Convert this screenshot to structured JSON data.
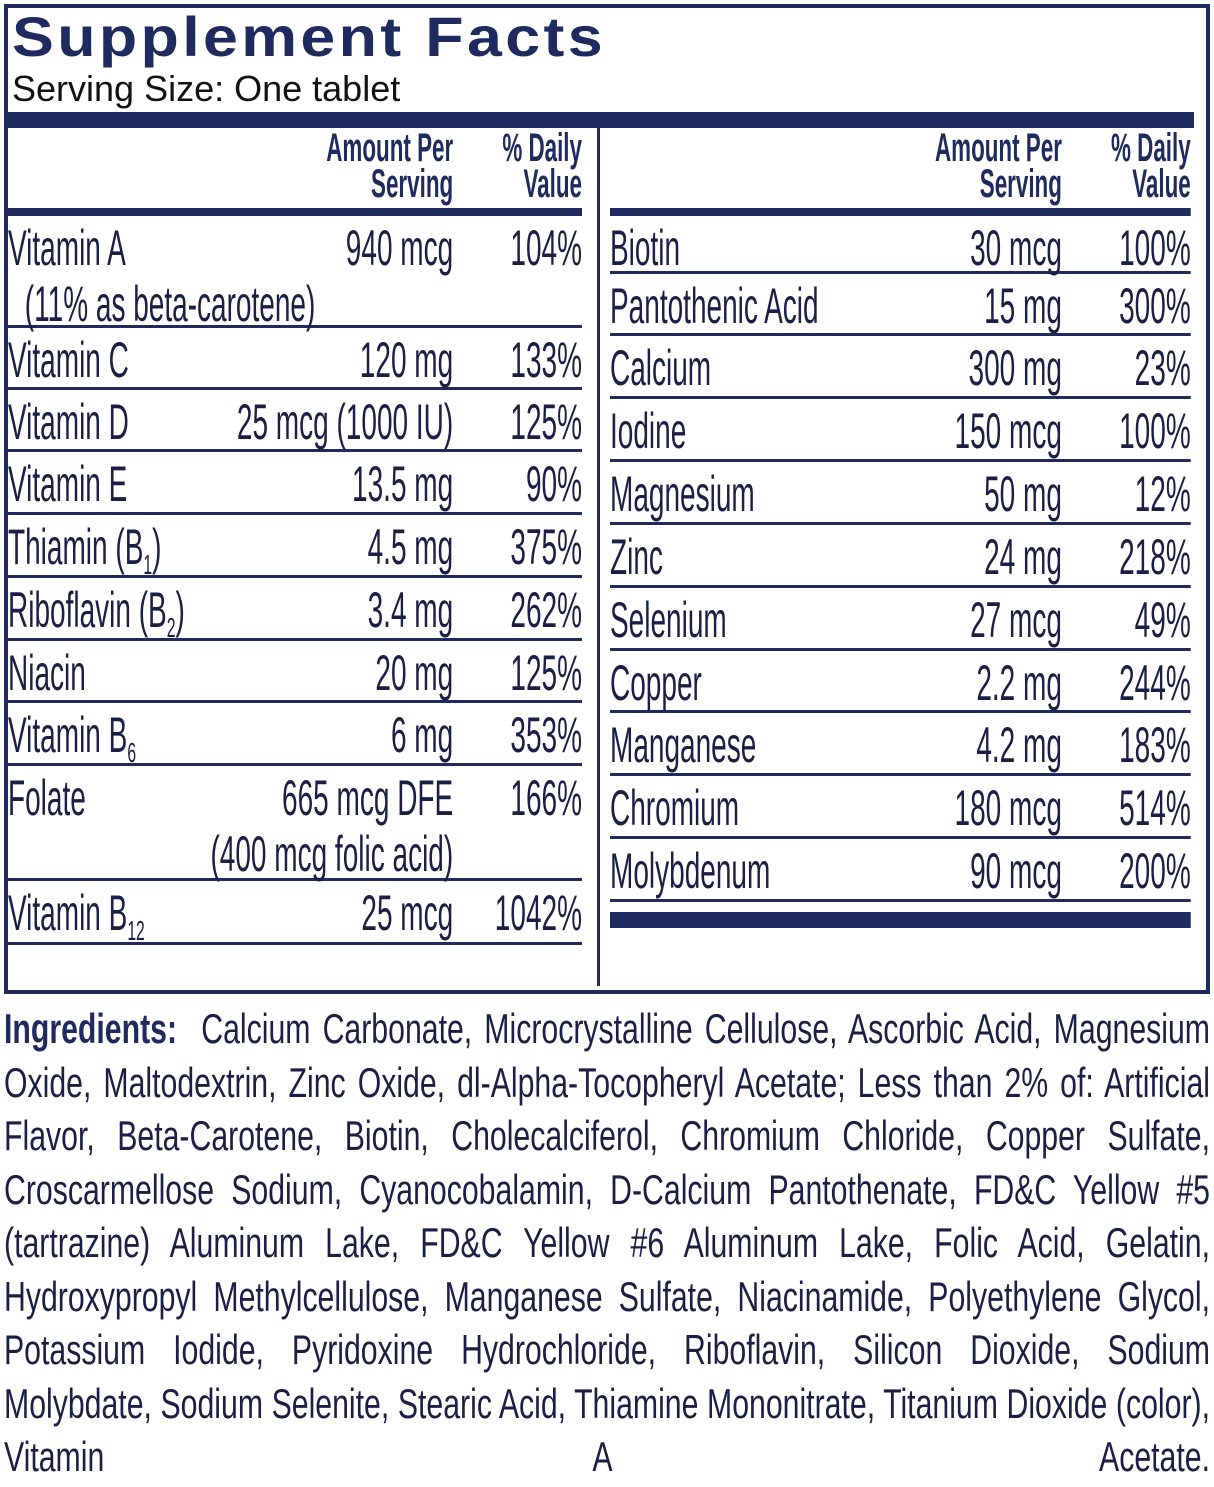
{
  "title": "Supplement Facts",
  "serving_size": "Serving Size:  One tablet",
  "header": {
    "amount": "Amount Per",
    "amount2": "Serving",
    "dv": "% Daily",
    "dv2": "Value"
  },
  "colors": {
    "navy": "#1f2a5e"
  },
  "left": [
    {
      "name": "Vitamin A",
      "sub": "",
      "amount": "940 mcg",
      "dv": "104%",
      "note": "(11% as beta-carotene)"
    },
    {
      "name": "Vitamin C",
      "sub": "",
      "amount": "120 mg",
      "dv": "133%"
    },
    {
      "name": "Vitamin D",
      "sub": "",
      "amount": "25 mcg (1000 IU)",
      "dv": "125%"
    },
    {
      "name": "Vitamin E",
      "sub": "",
      "amount": "13.5 mg",
      "dv": "90%"
    },
    {
      "name": "Thiamin (B",
      "sub": "1",
      "after": ")",
      "amount": "4.5 mg",
      "dv": "375%"
    },
    {
      "name": "Riboflavin (B",
      "sub": "2",
      "after": ")",
      "amount": "3.4 mg",
      "dv": "262%"
    },
    {
      "name": "Niacin",
      "sub": "",
      "amount": "20 mg",
      "dv": "125%"
    },
    {
      "name": "Vitamin B",
      "sub": "6",
      "amount": "6 mg",
      "dv": "353%"
    },
    {
      "name": "Folate",
      "sub": "",
      "amount": "665 mcg DFE",
      "dv": "166%",
      "note2": "(400 mcg folic acid)"
    },
    {
      "name": "Vitamin B",
      "sub": "12",
      "amount": "25 mcg",
      "dv": "1042%"
    }
  ],
  "right": [
    {
      "name": "Biotin",
      "amount": "30 mcg",
      "dv": "100%"
    },
    {
      "name": "Pantothenic Acid",
      "amount": "15 mg",
      "dv": "300%"
    },
    {
      "name": "Calcium",
      "amount": "300 mg",
      "dv": "23%"
    },
    {
      "name": "Iodine",
      "amount": "150 mcg",
      "dv": "100%"
    },
    {
      "name": "Magnesium",
      "amount": "50 mg",
      "dv": "12%"
    },
    {
      "name": "Zinc",
      "amount": "24 mg",
      "dv": "218%"
    },
    {
      "name": "Selenium",
      "amount": "27 mcg",
      "dv": "49%"
    },
    {
      "name": "Copper",
      "amount": "2.2 mg",
      "dv": "244%"
    },
    {
      "name": "Manganese",
      "amount": "4.2 mg",
      "dv": "183%"
    },
    {
      "name": "Chromium",
      "amount": "180 mcg",
      "dv": "514%"
    },
    {
      "name": "Molybdenum",
      "amount": "90 mcg",
      "dv": "200%"
    }
  ],
  "ingredients": {
    "label": "Ingredients:",
    "text": "Calcium Carbonate, Microcrystalline Cellulose, Ascorbic Acid, Magnesium Oxide, Maltodextrin, Zinc Oxide, dl-Alpha-Tocopheryl Acetate; Less than 2% of: Artificial Flavor, Beta-Carotene, Biotin, Cholecalciferol, Chromium Chloride, Copper Sulfate, Croscarmellose Sodium, Cyanocobalamin, D-Calcium Pantothenate, FD&C Yellow #5 (tartrazine) Aluminum Lake, FD&C Yellow #6 Aluminum Lake, Folic Acid, Gelatin, Hydroxypropyl Methylcellulose, Manganese Sulfate, Niacinamide, Polyethylene Glycol, Potassium Iodide, Pyridoxine Hydrochloride, Riboflavin, Silicon Dioxide, Sodium Molybdate, Sodium Selenite, Stearic Acid, Thiamine Mononitrate, Titanium Dioxide (color), Vitamin A Acetate."
  }
}
